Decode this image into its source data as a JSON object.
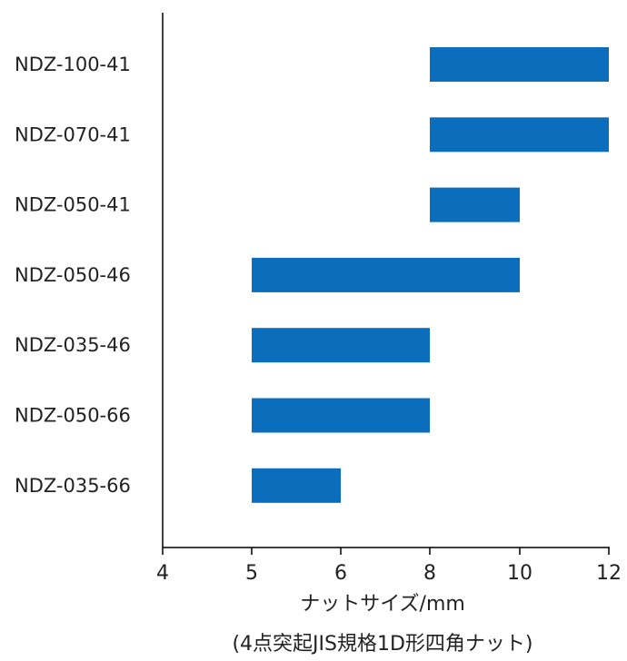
{
  "chart_data": {
    "type": "bar",
    "orientation": "horizontal",
    "series_type": "floating-range",
    "categories": [
      "NDZ-100-41",
      "NDZ-070-41",
      "NDZ-050-41",
      "NDZ-050-46",
      "NDZ-035-46",
      "NDZ-050-66",
      "NDZ-035-66"
    ],
    "ranges": [
      [
        8,
        12
      ],
      [
        8,
        12
      ],
      [
        8,
        10
      ],
      [
        5,
        10
      ],
      [
        5,
        8
      ],
      [
        5,
        8
      ],
      [
        5,
        6
      ]
    ],
    "x_ticks": [
      "4",
      "5",
      "6",
      "8",
      "10",
      "12"
    ],
    "xlabel": "ナットサイズ/mm",
    "xlabel_sub": "(4点突起JIS規格1D形四角ナット)",
    "ylabel": "",
    "title": "",
    "grid": false,
    "legend": "none",
    "bar_color": "#0a6ebd"
  }
}
